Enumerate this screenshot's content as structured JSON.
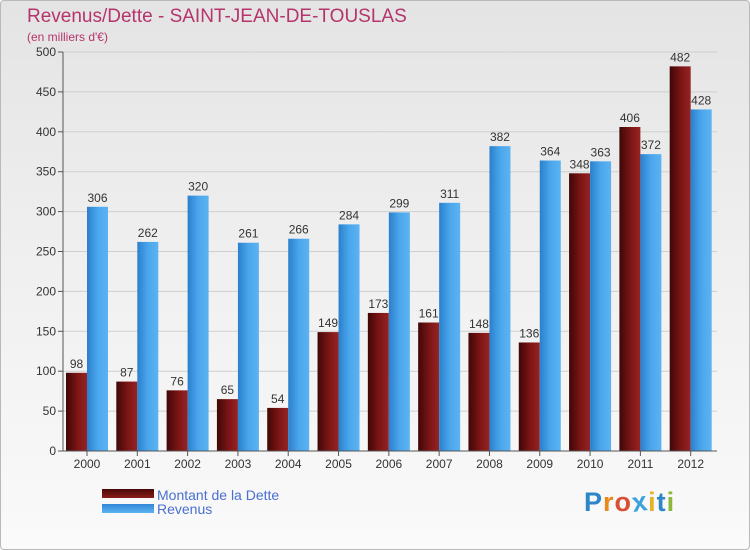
{
  "header": {
    "title": "Revenus/Dette - SAINT-JEAN-DE-TOUSLAS",
    "subtitle": "(en milliers d'€)"
  },
  "legend": {
    "debt_label": "Montant de la Dette",
    "revenue_label": "Revenus"
  },
  "logo": {
    "letters": [
      "P",
      "r",
      "o",
      "x",
      "i",
      "t",
      "i"
    ],
    "colors": [
      "#2e86c9",
      "#e8891c",
      "#d94f34",
      "#3aa2dc",
      "#e6b125",
      "#2e86c9",
      "#8bb73a"
    ]
  },
  "colors": {
    "debt": "#7a1414",
    "revenue": "#3d9be6",
    "title": "#b5346b"
  },
  "chart_data": {
    "type": "bar",
    "title": "Revenus/Dette - SAINT-JEAN-DE-TOUSLAS",
    "subtitle": "(en milliers d'€)",
    "xlabel": "",
    "ylabel": "",
    "ylim": [
      0,
      500
    ],
    "yticks": [
      0,
      50,
      100,
      150,
      200,
      250,
      300,
      350,
      400,
      450,
      500
    ],
    "grid": true,
    "legend_position": "bottom-left",
    "categories": [
      "2000",
      "2001",
      "2002",
      "2003",
      "2004",
      "2005",
      "2006",
      "2007",
      "2008",
      "2009",
      "2010",
      "2011",
      "2012"
    ],
    "series": [
      {
        "name": "Montant de la Dette",
        "values": [
          98,
          87,
          76,
          65,
          54,
          149,
          173,
          161,
          148,
          136,
          348,
          406,
          482
        ]
      },
      {
        "name": "Revenus",
        "values": [
          306,
          262,
          320,
          261,
          266,
          284,
          299,
          311,
          382,
          364,
          363,
          372,
          428
        ]
      }
    ]
  }
}
